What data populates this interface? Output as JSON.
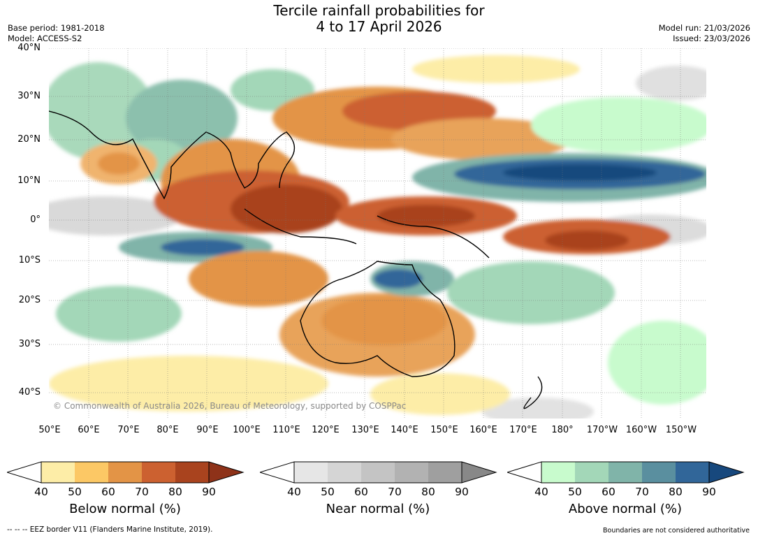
{
  "header": {
    "title_line1": "Tercile rainfall probabilities for",
    "title_line2": "4 to 17 April 2026",
    "base_period": "Base period: 1981-2018",
    "model": "Model: ACCESS-S2",
    "model_run": "Model run: 21/03/2026",
    "issued": "Issued: 23/03/2026"
  },
  "map": {
    "lat_labels": [
      "40°N",
      "30°N",
      "20°N",
      "10°N",
      "0°",
      "10°S",
      "20°S",
      "30°S",
      "40°S"
    ],
    "lon_labels": [
      "50°E",
      "60°E",
      "70°E",
      "80°E",
      "90°E",
      "100°E",
      "110°E",
      "120°E",
      "130°E",
      "140°E",
      "150°E",
      "160°E",
      "170°E",
      "180°",
      "170°W",
      "160°W",
      "150°W"
    ],
    "copyright": "© Commonwealth of Australia 2026, Bureau of Meteorology, supported by COSPPac"
  },
  "colorbars": [
    {
      "label": "Below normal (%)",
      "ticks": [
        "40",
        "50",
        "60",
        "70",
        "80",
        "90"
      ],
      "colors": [
        "#fdeda7",
        "#fcc865",
        "#e39446",
        "#cc6130",
        "#a9431e"
      ],
      "extend": "#8e3219"
    },
    {
      "label": "Near normal (%)",
      "ticks": [
        "40",
        "50",
        "60",
        "70",
        "80",
        "90"
      ],
      "colors": [
        "#e6e6e6",
        "#d5d5d5",
        "#c4c4c4",
        "#b2b2b2",
        "#9f9f9f"
      ],
      "extend": "#888888"
    },
    {
      "label": "Above normal (%)",
      "ticks": [
        "40",
        "50",
        "60",
        "70",
        "80",
        "90"
      ],
      "colors": [
        "#c8fbcd",
        "#a3d7b8",
        "#80b4a9",
        "#5a8f9f",
        "#316699"
      ],
      "extend": "#17487d"
    }
  ],
  "footer": {
    "eez": "--  --  -- EEZ border V11 (Flanders Marine Institute, 2019).",
    "disclaimer": "Boundaries are not considered authoritative"
  }
}
